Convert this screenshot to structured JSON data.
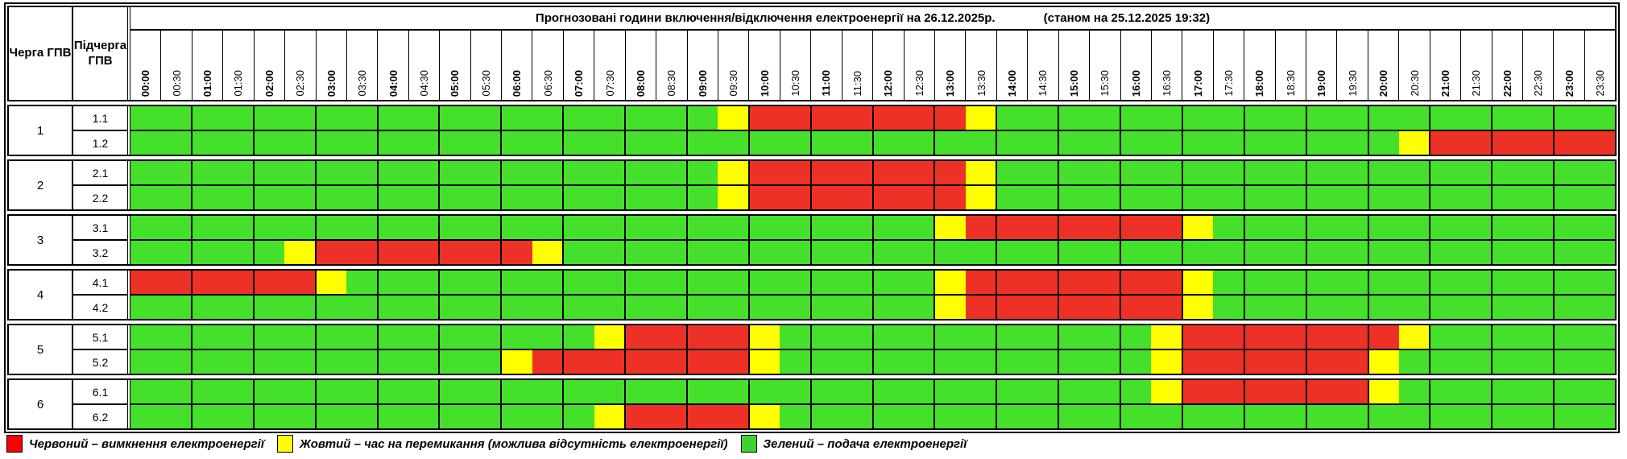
{
  "page": {
    "background": "#ffffff"
  },
  "colors": {
    "G": "#45e02b",
    "Y": "#ffff00",
    "R": "#ee3126",
    "legend_red": "#fb0000",
    "legend_yellow": "#ffff00",
    "legend_green": "#3ed32c"
  },
  "header": {
    "queue_label": "Черга ГПВ",
    "subqueue_label": "Підчерга ГПВ",
    "title": "Прогнозовані години включення/відключення електроенергії на 26.12.2025р.",
    "timestamp": "(станом на 25.12.2025 19:32)",
    "times": [
      "00:00",
      "00:30",
      "01:00",
      "01:30",
      "02:00",
      "02:30",
      "03:00",
      "03:30",
      "04:00",
      "04:30",
      "05:00",
      "05:30",
      "06:00",
      "06:30",
      "07:00",
      "07:30",
      "08:00",
      "08:30",
      "09:00",
      "09:30",
      "10:00",
      "10:30",
      "11:00",
      "11:30",
      "12:00",
      "12:30",
      "13:00",
      "13:30",
      "14:00",
      "14:30",
      "15:00",
      "15:30",
      "16:00",
      "16:30",
      "17:00",
      "17:30",
      "18:00",
      "18:30",
      "19:00",
      "19:30",
      "20:00",
      "20:30",
      "21:00",
      "21:30",
      "22:00",
      "22:30",
      "23:00",
      "23:30"
    ]
  },
  "schedule": {
    "slot_minutes": 30,
    "groups": [
      {
        "queue": "1",
        "rows": [
          {
            "label": "1.1",
            "segments": [
              [
                "G",
                19
              ],
              [
                "Y",
                1
              ],
              [
                "R",
                7
              ],
              [
                "Y",
                1
              ],
              [
                "G",
                20
              ]
            ]
          },
          {
            "label": "1.2",
            "segments": [
              [
                "G",
                41
              ],
              [
                "Y",
                1
              ],
              [
                "R",
                6
              ]
            ]
          }
        ]
      },
      {
        "queue": "2",
        "rows": [
          {
            "label": "2.1",
            "segments": [
              [
                "G",
                19
              ],
              [
                "Y",
                1
              ],
              [
                "R",
                7
              ],
              [
                "Y",
                1
              ],
              [
                "G",
                20
              ]
            ]
          },
          {
            "label": "2.2",
            "segments": [
              [
                "G",
                19
              ],
              [
                "Y",
                1
              ],
              [
                "R",
                7
              ],
              [
                "Y",
                1
              ],
              [
                "G",
                20
              ]
            ]
          }
        ]
      },
      {
        "queue": "3",
        "rows": [
          {
            "label": "3.1",
            "segments": [
              [
                "G",
                26
              ],
              [
                "Y",
                1
              ],
              [
                "R",
                7
              ],
              [
                "Y",
                1
              ],
              [
                "G",
                13
              ]
            ]
          },
          {
            "label": "3.2",
            "segments": [
              [
                "G",
                5
              ],
              [
                "Y",
                1
              ],
              [
                "R",
                7
              ],
              [
                "Y",
                1
              ],
              [
                "G",
                34
              ]
            ]
          }
        ]
      },
      {
        "queue": "4",
        "rows": [
          {
            "label": "4.1",
            "segments": [
              [
                "R",
                6
              ],
              [
                "Y",
                1
              ],
              [
                "G",
                19
              ],
              [
                "Y",
                1
              ],
              [
                "R",
                7
              ],
              [
                "Y",
                1
              ],
              [
                "G",
                13
              ]
            ]
          },
          {
            "label": "4.2",
            "segments": [
              [
                "G",
                26
              ],
              [
                "Y",
                1
              ],
              [
                "R",
                7
              ],
              [
                "Y",
                1
              ],
              [
                "G",
                13
              ]
            ]
          }
        ]
      },
      {
        "queue": "5",
        "rows": [
          {
            "label": "5.1",
            "segments": [
              [
                "G",
                15
              ],
              [
                "Y",
                1
              ],
              [
                "R",
                4
              ],
              [
                "Y",
                1
              ],
              [
                "G",
                12
              ],
              [
                "Y",
                1
              ],
              [
                "R",
                7
              ],
              [
                "Y",
                1
              ],
              [
                "G",
                6
              ]
            ]
          },
          {
            "label": "5.2",
            "segments": [
              [
                "G",
                12
              ],
              [
                "Y",
                1
              ],
              [
                "R",
                7
              ],
              [
                "Y",
                1
              ],
              [
                "G",
                12
              ],
              [
                "Y",
                1
              ],
              [
                "R",
                6
              ],
              [
                "Y",
                1
              ],
              [
                "G",
                7
              ]
            ]
          }
        ]
      },
      {
        "queue": "6",
        "rows": [
          {
            "label": "6.1",
            "segments": [
              [
                "G",
                33
              ],
              [
                "Y",
                1
              ],
              [
                "R",
                6
              ],
              [
                "Y",
                1
              ],
              [
                "G",
                7
              ]
            ]
          },
          {
            "label": "6.2",
            "segments": [
              [
                "G",
                15
              ],
              [
                "Y",
                1
              ],
              [
                "R",
                4
              ],
              [
                "Y",
                1
              ],
              [
                "G",
                27
              ]
            ]
          }
        ]
      }
    ]
  },
  "legend": {
    "items": [
      {
        "color_key": "legend_red",
        "label": "Червоний – вимкнення електроенергії"
      },
      {
        "color_key": "legend_yellow",
        "label": "Жовтий – час на перемикання (можлива відсутність електроенергії)"
      },
      {
        "color_key": "legend_green",
        "label": "Зелений – подача електроенергії"
      }
    ]
  }
}
